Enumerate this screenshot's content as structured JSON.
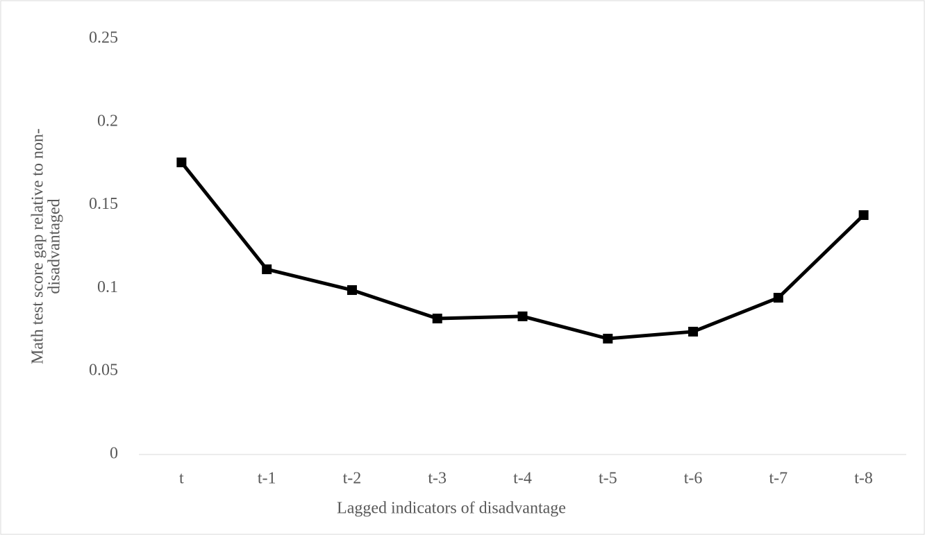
{
  "chart_data": {
    "type": "line",
    "xlabel": "Lagged indicators of disadvantage",
    "ylabel": [
      "Math test score gap relative to non-",
      "disadvantaged"
    ],
    "categories": [
      "t",
      "t-1",
      "t-2",
      "t-3",
      "t-4",
      "t-5",
      "t-6",
      "t-7",
      "t-8"
    ],
    "series": [
      {
        "name": "Math test score gap",
        "color": "#000000",
        "values": [
          0.1757,
          0.1114,
          0.0989,
          0.0818,
          0.0831,
          0.0697,
          0.0739,
          0.0943,
          0.144
        ]
      }
    ],
    "ylim": [
      0,
      0.25
    ],
    "yticks": [
      0,
      0.05,
      0.1,
      0.15,
      0.2,
      0.25
    ],
    "grid": false
  }
}
